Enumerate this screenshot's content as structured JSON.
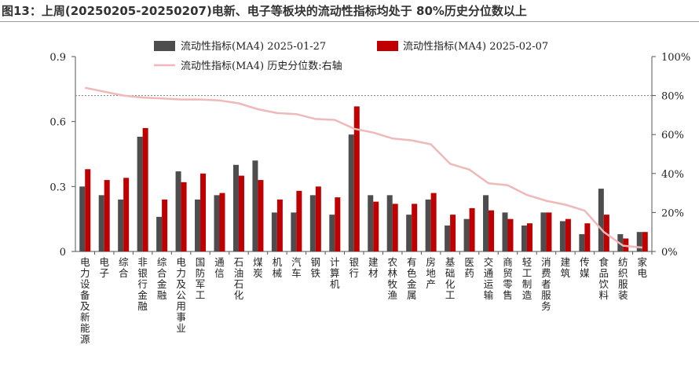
{
  "figure": {
    "title": "图13：上周(20250205-20250207)电新、电子等板块的流动性指标均处于 80%历史分位数以上"
  },
  "colors": {
    "series1": "#4d4d4d",
    "series2": "#c00000",
    "series3": "#f0b8b8",
    "threshold": "#808080",
    "axis": "#555555"
  },
  "chart_data": {
    "type": "bar",
    "categories": [
      "电力设备及新能源",
      "电子",
      "综合",
      "非银行金融",
      "综合金融",
      "电力及公用事业",
      "国防军工",
      "通信",
      "石油石化",
      "煤炭",
      "机械",
      "汽车",
      "钢铁",
      "计算机",
      "银行",
      "建材",
      "农林牧渔",
      "有色金属",
      "房地产",
      "基础化工",
      "医药",
      "交通运输",
      "商贸零售",
      "轻工制造",
      "消费者服务",
      "建筑",
      "传媒",
      "食品饮料",
      "纺织服装",
      "家电"
    ],
    "series": [
      {
        "name": "流动性指标(MA4) 2025-01-27",
        "type": "bar",
        "axis": "left",
        "values": [
          0.3,
          0.26,
          0.24,
          0.53,
          0.16,
          0.37,
          0.24,
          0.26,
          0.4,
          0.42,
          0.18,
          0.18,
          0.26,
          0.17,
          0.54,
          0.26,
          0.26,
          0.17,
          0.24,
          0.12,
          0.15,
          0.26,
          0.18,
          0.12,
          0.18,
          0.14,
          0.08,
          0.29,
          0.08,
          0.09
        ]
      },
      {
        "name": "流动性指标(MA4) 2025-02-07",
        "type": "bar",
        "axis": "left",
        "values": [
          0.38,
          0.33,
          0.34,
          0.57,
          0.24,
          0.32,
          0.36,
          0.27,
          0.35,
          0.33,
          0.24,
          0.28,
          0.3,
          0.25,
          0.67,
          0.23,
          0.22,
          0.22,
          0.27,
          0.17,
          0.2,
          0.19,
          0.15,
          0.13,
          0.18,
          0.15,
          0.13,
          0.17,
          0.06,
          0.09
        ]
      },
      {
        "name": "流动性指标(MA4) 历史分位数:右轴",
        "type": "line",
        "axis": "right",
        "values": [
          84,
          82,
          80,
          79,
          78.5,
          78,
          78,
          77.5,
          76,
          73,
          71,
          70.5,
          68,
          67.5,
          63,
          61,
          58,
          57,
          55,
          45,
          42,
          35,
          34,
          29,
          26,
          24,
          21,
          10,
          3,
          2
        ]
      }
    ],
    "y_left": {
      "lim": [
        0,
        0.9
      ],
      "ticks": [
        "0",
        "0.3",
        "0.6",
        "0.9"
      ]
    },
    "y_right": {
      "lim": [
        0,
        100
      ],
      "ticks": [
        "0%",
        "20%",
        "40%",
        "60%",
        "80%",
        "100%"
      ]
    },
    "reference_line": {
      "axis": "right",
      "value": 80
    },
    "grid": false,
    "legend_position": "top"
  }
}
